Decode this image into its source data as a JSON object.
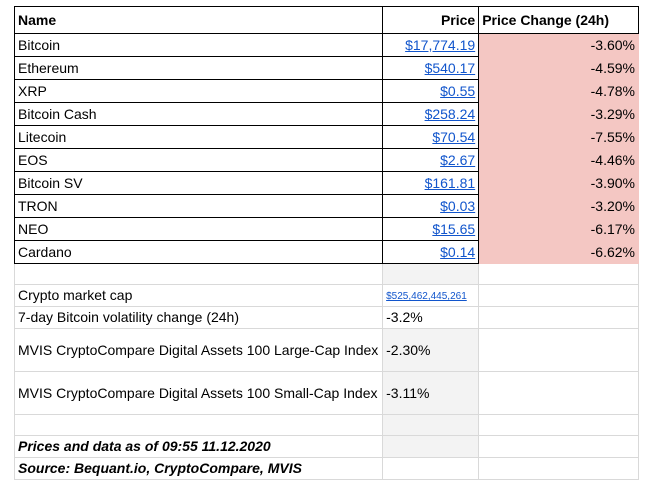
{
  "headers": {
    "name": "Name",
    "price": "Price",
    "change": "Price Change (24h)"
  },
  "coins": [
    {
      "name": "Bitcoin",
      "price": "$17,774.19",
      "change": "-3.60%"
    },
    {
      "name": "Ethereum",
      "price": "$540.17",
      "change": "-4.59%"
    },
    {
      "name": "XRP",
      "price": "$0.55",
      "change": "-4.78%"
    },
    {
      "name": "Bitcoin Cash",
      "price": "$258.24",
      "change": "-3.29%"
    },
    {
      "name": "Litecoin",
      "price": "$70.54",
      "change": "-7.55%"
    },
    {
      "name": "EOS",
      "price": "$2.67",
      "change": "-4.46%"
    },
    {
      "name": "Bitcoin SV",
      "price": "$161.81",
      "change": "-3.90%"
    },
    {
      "name": "TRON",
      "price": "$0.03",
      "change": "-3.20%"
    },
    {
      "name": "NEO",
      "price": "$15.65",
      "change": "-6.17%"
    },
    {
      "name": "Cardano",
      "price": "$0.14",
      "change": "-6.62%"
    }
  ],
  "metrics": {
    "market_cap_label": "Crypto market cap",
    "market_cap_value": "$525,462,445,261",
    "volatility_label": "7-day Bitcoin volatility change (24h)",
    "volatility_value": "-3.2%",
    "large_cap_label": "MVIS CryptoCompare Digital Assets 100 Large-Cap Index",
    "large_cap_value": "-2.30%",
    "small_cap_label": "MVIS CryptoCompare Digital Assets 100 Small-Cap Index",
    "small_cap_value": "-3.11%"
  },
  "footer": {
    "as_of": "Prices and data as of 09:55 11.12.2020",
    "source": "Source: Bequant.io, CryptoCompare, MVIS"
  },
  "colors": {
    "negative_fill": "#f4c7c3",
    "link": "#1155cc"
  }
}
